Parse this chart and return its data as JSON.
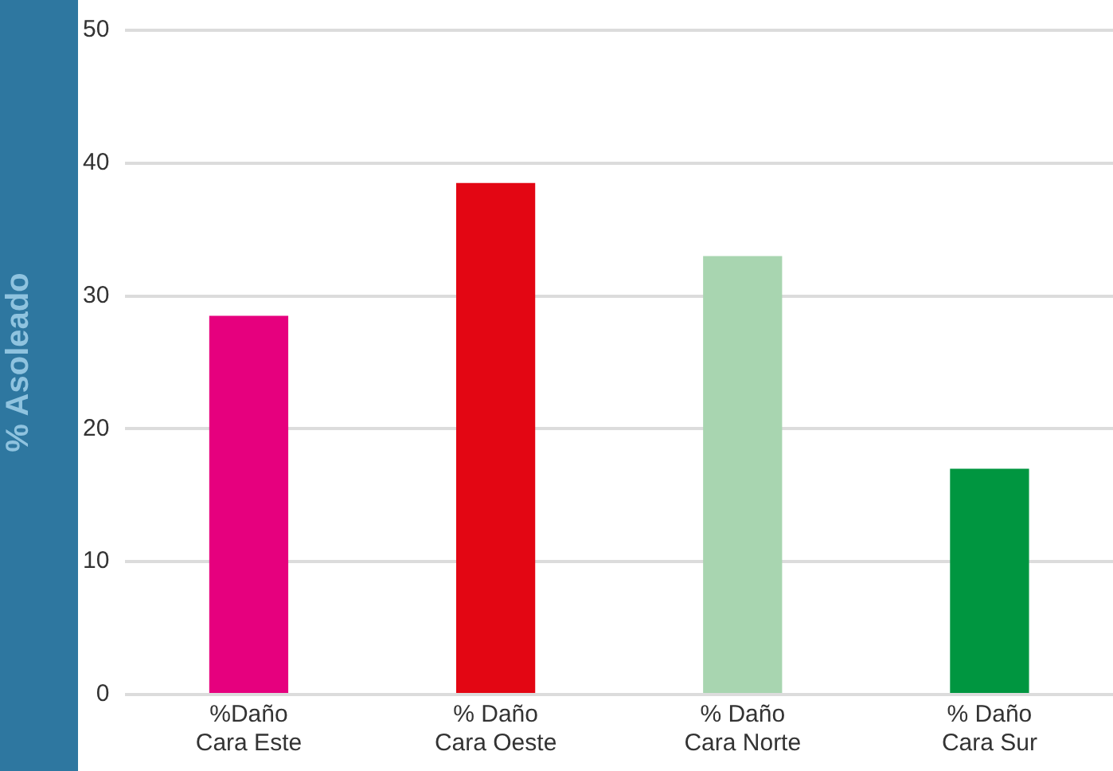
{
  "chart_data": {
    "type": "bar",
    "ylabel": "% Asoleado",
    "categories": [
      "%Daño\nCara Este",
      "% Daño\nCara Oeste",
      "% Daño\nCara Norte",
      "% Daño\nCara Sur"
    ],
    "values": [
      28.5,
      38.5,
      33,
      17
    ],
    "colors": [
      "#e6007e",
      "#e30613",
      "#a8d5b0",
      "#009640"
    ],
    "ylim": [
      0,
      50
    ],
    "yticks": [
      0,
      10,
      20,
      30,
      40,
      50
    ],
    "grid": "y",
    "legend": false
  }
}
